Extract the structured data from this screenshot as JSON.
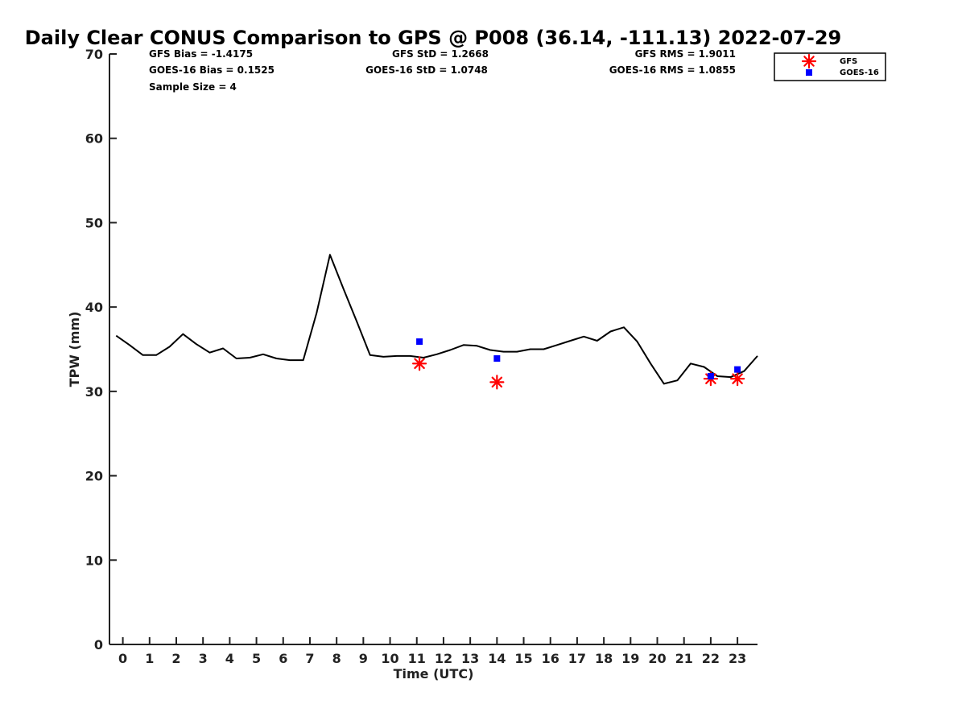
{
  "chart_data": {
    "type": "line",
    "title": "Daily Clear CONUS Comparison to GPS @ P008 (36.14, -111.13) 2022-07-29",
    "xlabel": "Time (UTC)",
    "ylabel": "TPW (mm)",
    "xlim": [
      -0.5,
      23.75
    ],
    "ylim": [
      0,
      70
    ],
    "xticks": [
      "0",
      "1",
      "2",
      "3",
      "4",
      "5",
      "6",
      "7",
      "8",
      "9",
      "10",
      "11",
      "12",
      "13",
      "14",
      "15",
      "16",
      "17",
      "18",
      "19",
      "20",
      "21",
      "22",
      "23"
    ],
    "yticks": [
      "0",
      "10",
      "20",
      "30",
      "40",
      "50",
      "60",
      "70"
    ],
    "stats": {
      "gfs_bias": "GFS Bias = -1.4175",
      "gfs_std": "GFS StD = 1.2668",
      "gfs_rms": "GFS RMS = 1.9011",
      "goes_bias": "GOES-16 Bias = 0.1525",
      "goes_std": "GOES-16 StD = 1.0748",
      "goes_rms": "GOES-16 RMS = 1.0855",
      "sample_size": "Sample Size = 4"
    },
    "legend": {
      "placement": "top-right",
      "items": [
        {
          "label": "GFS",
          "marker": "asterisk",
          "color": "#ff0000"
        },
        {
          "label": "GOES-16",
          "marker": "square",
          "color": "#0000ff"
        }
      ]
    },
    "series": [
      {
        "style": "line",
        "color": "#000000",
        "x": [
          -0.25,
          0.25,
          0.75,
          1.25,
          1.75,
          2.25,
          2.75,
          3.25,
          3.75,
          4.25,
          4.75,
          5.25,
          5.75,
          6.25,
          6.75,
          7.25,
          7.75,
          8.25,
          8.75,
          9.25,
          9.75,
          10.25,
          10.75,
          11.25,
          11.75,
          12.25,
          12.75,
          13.25,
          13.75,
          14.25,
          14.75,
          15.25,
          15.75,
          16.25,
          16.75,
          17.25,
          17.75,
          18.25,
          18.75,
          19.25,
          19.75,
          20.25,
          20.75,
          21.25,
          21.75,
          22.25,
          22.75,
          23.25,
          23.75
        ],
        "y": [
          36.6,
          35.5,
          34.3,
          34.3,
          35.3,
          36.8,
          35.6,
          34.6,
          35.1,
          33.9,
          34.0,
          34.4,
          33.9,
          33.7,
          33.7,
          39.3,
          46.2,
          42.2,
          38.3,
          34.3,
          34.1,
          34.2,
          34.2,
          34.0,
          34.4,
          34.9,
          35.5,
          35.4,
          34.9,
          34.7,
          34.7,
          35.0,
          35.0,
          35.5,
          36.0,
          36.5,
          36.0,
          37.1,
          37.6,
          35.9,
          33.3,
          30.9,
          31.3,
          33.3,
          32.9,
          31.8,
          31.7,
          32.4,
          34.2
        ]
      },
      {
        "name": "GFS",
        "style": "marker-asterisk",
        "color": "#ff0000",
        "x": [
          11.1,
          14.0,
          22.0,
          23.0
        ],
        "y": [
          33.3,
          31.1,
          31.5,
          31.5
        ]
      },
      {
        "name": "GOES-16",
        "style": "marker-square",
        "color": "#0000ff",
        "x": [
          11.1,
          14.0,
          22.0,
          23.0
        ],
        "y": [
          35.9,
          33.9,
          31.8,
          32.6
        ]
      }
    ]
  }
}
